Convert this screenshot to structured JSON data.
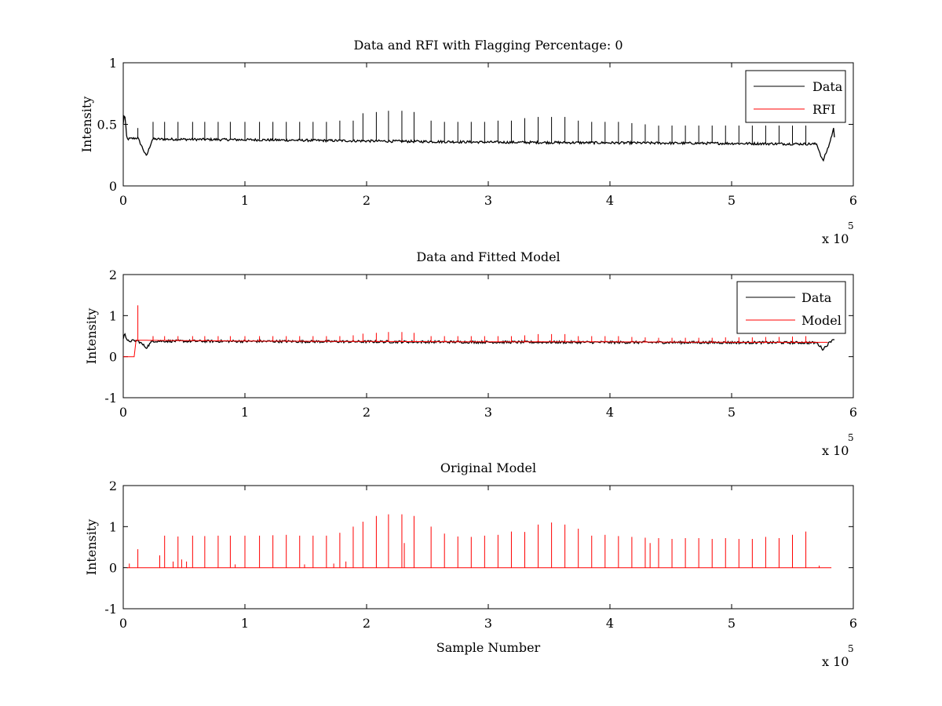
{
  "chart_data": [
    {
      "type": "line",
      "title": "Data and RFI with Flagging Percentage: 0",
      "xlabel": "",
      "ylabel": "Intensity",
      "xlim": [
        0,
        600000
      ],
      "ylim": [
        0,
        1
      ],
      "x_ticks": [
        "0",
        "1",
        "2",
        "3",
        "4",
        "5",
        "6"
      ],
      "y_ticks": [
        "0",
        "0.5",
        "1"
      ],
      "x_multiplier": "x 10",
      "x_multiplier_exponent": "5",
      "legend_position": "top-right",
      "grid": false,
      "series": [
        {
          "name": "Data",
          "color": "#000000",
          "baseline": [
            [
              0,
              0.5
            ],
            [
              1000,
              0.6
            ],
            [
              3000,
              0.38
            ],
            [
              12000,
              0.39
            ],
            [
              19000,
              0.24
            ],
            [
              24000,
              0.38
            ],
            [
              100000,
              0.375
            ],
            [
              200000,
              0.365
            ],
            [
              300000,
              0.355
            ],
            [
              400000,
              0.35
            ],
            [
              500000,
              0.345
            ],
            [
              570000,
              0.34
            ],
            [
              575000,
              0.2
            ],
            [
              580000,
              0.33
            ],
            [
              584000,
              0.47
            ],
            [
              585000,
              0.33
            ]
          ],
          "spikes": [
            [
              12000,
              0.47
            ],
            [
              24500,
              0.52
            ],
            [
              34000,
              0.52
            ],
            [
              45000,
              0.52
            ],
            [
              57000,
              0.52
            ],
            [
              67000,
              0.52
            ],
            [
              78000,
              0.52
            ],
            [
              88000,
              0.52
            ],
            [
              100000,
              0.52
            ],
            [
              112000,
              0.52
            ],
            [
              123000,
              0.52
            ],
            [
              134000,
              0.52
            ],
            [
              145000,
              0.52
            ],
            [
              156000,
              0.52
            ],
            [
              167000,
              0.52
            ],
            [
              178000,
              0.53
            ],
            [
              189000,
              0.53
            ],
            [
              197000,
              0.59
            ],
            [
              208000,
              0.6
            ],
            [
              218000,
              0.61
            ],
            [
              229000,
              0.61
            ],
            [
              239000,
              0.6
            ],
            [
              253000,
              0.53
            ],
            [
              264000,
              0.52
            ],
            [
              275000,
              0.52
            ],
            [
              286000,
              0.52
            ],
            [
              297000,
              0.52
            ],
            [
              308000,
              0.53
            ],
            [
              319000,
              0.53
            ],
            [
              330000,
              0.55
            ],
            [
              341000,
              0.56
            ],
            [
              352000,
              0.56
            ],
            [
              363000,
              0.56
            ],
            [
              374000,
              0.53
            ],
            [
              385000,
              0.52
            ],
            [
              396000,
              0.52
            ],
            [
              407000,
              0.52
            ],
            [
              418000,
              0.51
            ],
            [
              429000,
              0.5
            ],
            [
              440000,
              0.49
            ],
            [
              451000,
              0.49
            ],
            [
              462000,
              0.49
            ],
            [
              473000,
              0.49
            ],
            [
              484000,
              0.49
            ],
            [
              495000,
              0.49
            ],
            [
              506000,
              0.49
            ],
            [
              517000,
              0.49
            ],
            [
              528000,
              0.49
            ],
            [
              539000,
              0.49
            ],
            [
              550000,
              0.49
            ],
            [
              561000,
              0.49
            ]
          ]
        },
        {
          "name": "RFI",
          "color": "#ff0000",
          "baseline": [],
          "spikes": []
        }
      ]
    },
    {
      "type": "line",
      "title": "Data and Fitted Model",
      "xlabel": "",
      "ylabel": "Intensity",
      "xlim": [
        0,
        600000
      ],
      "ylim": [
        -1,
        2
      ],
      "x_ticks": [
        "0",
        "1",
        "2",
        "3",
        "4",
        "5",
        "6"
      ],
      "y_ticks": [
        "-1",
        "0",
        "1",
        "2"
      ],
      "x_multiplier": "x 10",
      "x_multiplier_exponent": "5",
      "legend_position": "top-right",
      "grid": false,
      "series": [
        {
          "name": "Data",
          "color": "#000000",
          "baseline": [
            [
              0,
              0.45
            ],
            [
              1000,
              0.6
            ],
            [
              3000,
              0.38
            ],
            [
              12000,
              0.39
            ],
            [
              19000,
              0.22
            ],
            [
              24000,
              0.38
            ],
            [
              100000,
              0.375
            ],
            [
              200000,
              0.365
            ],
            [
              300000,
              0.355
            ],
            [
              400000,
              0.35
            ],
            [
              500000,
              0.345
            ],
            [
              570000,
              0.34
            ],
            [
              575000,
              0.18
            ],
            [
              580000,
              0.33
            ],
            [
              584000,
              0.45
            ],
            [
              585000,
              0.33
            ]
          ],
          "spikes": [
            [
              24500,
              0.5
            ],
            [
              112000,
              0.45
            ],
            [
              229000,
              0.45
            ]
          ]
        },
        {
          "name": "Model",
          "color": "#ff0000",
          "baseline": [
            [
              0,
              0.0
            ],
            [
              9000,
              0.0
            ],
            [
              10000,
              0.4
            ],
            [
              100000,
              0.38
            ],
            [
              200000,
              0.37
            ],
            [
              300000,
              0.36
            ],
            [
              400000,
              0.36
            ],
            [
              500000,
              0.35
            ],
            [
              580000,
              0.35
            ]
          ],
          "spikes": [
            [
              12000,
              1.25
            ],
            [
              24500,
              0.5
            ],
            [
              34000,
              0.5
            ],
            [
              45000,
              0.5
            ],
            [
              57000,
              0.5
            ],
            [
              67000,
              0.5
            ],
            [
              78000,
              0.5
            ],
            [
              88000,
              0.5
            ],
            [
              100000,
              0.5
            ],
            [
              112000,
              0.5
            ],
            [
              123000,
              0.5
            ],
            [
              134000,
              0.5
            ],
            [
              145000,
              0.5
            ],
            [
              156000,
              0.5
            ],
            [
              167000,
              0.5
            ],
            [
              178000,
              0.5
            ],
            [
              189000,
              0.52
            ],
            [
              197000,
              0.56
            ],
            [
              208000,
              0.58
            ],
            [
              218000,
              0.6
            ],
            [
              229000,
              0.6
            ],
            [
              239000,
              0.58
            ],
            [
              253000,
              0.5
            ],
            [
              264000,
              0.5
            ],
            [
              275000,
              0.5
            ],
            [
              286000,
              0.5
            ],
            [
              297000,
              0.5
            ],
            [
              308000,
              0.5
            ],
            [
              319000,
              0.5
            ],
            [
              330000,
              0.52
            ],
            [
              341000,
              0.55
            ],
            [
              352000,
              0.55
            ],
            [
              363000,
              0.55
            ],
            [
              374000,
              0.5
            ],
            [
              385000,
              0.5
            ],
            [
              396000,
              0.5
            ],
            [
              407000,
              0.5
            ],
            [
              418000,
              0.48
            ],
            [
              429000,
              0.47
            ],
            [
              440000,
              0.46
            ],
            [
              451000,
              0.46
            ],
            [
              462000,
              0.46
            ],
            [
              473000,
              0.46
            ],
            [
              484000,
              0.46
            ],
            [
              495000,
              0.47
            ],
            [
              506000,
              0.47
            ],
            [
              517000,
              0.47
            ],
            [
              528000,
              0.48
            ],
            [
              539000,
              0.48
            ],
            [
              550000,
              0.49
            ],
            [
              561000,
              0.5
            ]
          ]
        }
      ]
    },
    {
      "type": "line",
      "title": "Original Model",
      "xlabel": "Sample Number",
      "ylabel": "Intensity",
      "xlim": [
        0,
        600000
      ],
      "ylim": [
        -1,
        2
      ],
      "x_ticks": [
        "0",
        "1",
        "2",
        "3",
        "4",
        "5",
        "6"
      ],
      "y_ticks": [
        "-1",
        "0",
        "1",
        "2"
      ],
      "x_multiplier": "x 10",
      "x_multiplier_exponent": "5",
      "legend_position": "none",
      "grid": false,
      "series": [
        {
          "name": "",
          "color": "#ff0000",
          "baseline": [
            [
              3000,
              0.0
            ],
            [
              583000,
              0.0
            ]
          ],
          "spikes": [
            [
              5000,
              0.1
            ],
            [
              12000,
              0.45
            ],
            [
              30000,
              0.3
            ],
            [
              34000,
              0.78
            ],
            [
              41000,
              0.15
            ],
            [
              45000,
              0.76
            ],
            [
              48000,
              0.2
            ],
            [
              52000,
              0.15
            ],
            [
              57000,
              0.78
            ],
            [
              67000,
              0.77
            ],
            [
              78000,
              0.78
            ],
            [
              88000,
              0.78
            ],
            [
              92000,
              0.08
            ],
            [
              100000,
              0.78
            ],
            [
              112000,
              0.78
            ],
            [
              123000,
              0.79
            ],
            [
              134000,
              0.8
            ],
            [
              145000,
              0.78
            ],
            [
              149000,
              0.08
            ],
            [
              156000,
              0.78
            ],
            [
              167000,
              0.78
            ],
            [
              173000,
              0.1
            ],
            [
              178000,
              0.85
            ],
            [
              183000,
              0.15
            ],
            [
              189000,
              1.0
            ],
            [
              197000,
              1.12
            ],
            [
              208000,
              1.26
            ],
            [
              218000,
              1.3
            ],
            [
              229000,
              1.3
            ],
            [
              231000,
              0.6
            ],
            [
              239000,
              1.26
            ],
            [
              253000,
              1.0
            ],
            [
              264000,
              0.83
            ],
            [
              275000,
              0.76
            ],
            [
              286000,
              0.75
            ],
            [
              297000,
              0.78
            ],
            [
              308000,
              0.8
            ],
            [
              319000,
              0.88
            ],
            [
              330000,
              0.87
            ],
            [
              341000,
              1.05
            ],
            [
              352000,
              1.1
            ],
            [
              363000,
              1.05
            ],
            [
              374000,
              0.95
            ],
            [
              385000,
              0.78
            ],
            [
              396000,
              0.8
            ],
            [
              407000,
              0.77
            ],
            [
              418000,
              0.75
            ],
            [
              429000,
              0.73
            ],
            [
              433000,
              0.6
            ],
            [
              440000,
              0.72
            ],
            [
              451000,
              0.7
            ],
            [
              462000,
              0.72
            ],
            [
              473000,
              0.72
            ],
            [
              484000,
              0.7
            ],
            [
              495000,
              0.72
            ],
            [
              506000,
              0.7
            ],
            [
              517000,
              0.7
            ],
            [
              528000,
              0.75
            ],
            [
              539000,
              0.72
            ],
            [
              550000,
              0.8
            ],
            [
              561000,
              0.88
            ],
            [
              572000,
              0.05
            ]
          ]
        }
      ]
    }
  ]
}
